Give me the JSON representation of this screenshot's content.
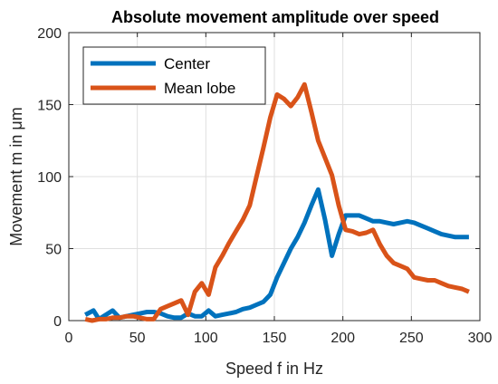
{
  "chart_data": {
    "type": "line",
    "title": "Absolute movement amplitude over speed",
    "xlabel": "Speed f in Hz",
    "ylabel": "Movement m in μm",
    "xlim": [
      0,
      300
    ],
    "ylim": [
      0,
      200
    ],
    "xticks": [
      0,
      50,
      100,
      150,
      200,
      250,
      300
    ],
    "yticks": [
      0,
      50,
      100,
      150,
      200
    ],
    "grid": true,
    "legend_position": "top-left",
    "series": [
      {
        "name": "Center",
        "color": "#0072BD",
        "x": [
          12,
          18,
          22,
          27,
          32,
          37,
          42,
          47,
          52,
          57,
          62,
          67,
          72,
          77,
          82,
          87,
          92,
          97,
          102,
          107,
          112,
          117,
          122,
          127,
          132,
          137,
          142,
          147,
          152,
          157,
          162,
          167,
          172,
          177,
          182,
          187,
          192,
          197,
          202,
          207,
          212,
          217,
          222,
          227,
          232,
          237,
          242,
          247,
          252,
          257,
          262,
          267,
          272,
          277,
          282,
          287,
          292
        ],
        "y": [
          4,
          7,
          1,
          4,
          7,
          2,
          3,
          4,
          5,
          6,
          6,
          5,
          3,
          2,
          2,
          5,
          3,
          3,
          7,
          3,
          4,
          5,
          6,
          8,
          9,
          11,
          13,
          18,
          30,
          40,
          50,
          58,
          68,
          80,
          91,
          70,
          45,
          60,
          73,
          73,
          73,
          71,
          69,
          69,
          68,
          67,
          68,
          69,
          68,
          66,
          64,
          62,
          60,
          59,
          58,
          58,
          58
        ]
      },
      {
        "name": "Mean lobe",
        "color": "#D95319",
        "x": [
          12,
          17,
          22,
          27,
          32,
          37,
          42,
          47,
          52,
          57,
          62,
          67,
          72,
          77,
          82,
          87,
          92,
          97,
          102,
          107,
          112,
          117,
          122,
          127,
          132,
          137,
          142,
          147,
          152,
          157,
          162,
          167,
          172,
          177,
          182,
          187,
          192,
          197,
          202,
          207,
          212,
          217,
          222,
          227,
          232,
          237,
          242,
          247,
          252,
          257,
          262,
          267,
          272,
          277,
          282,
          287,
          292
        ],
        "y": [
          1,
          0,
          1,
          1,
          2,
          2,
          3,
          3,
          2,
          1,
          1,
          8,
          10,
          12,
          14,
          4,
          20,
          26,
          18,
          37,
          45,
          54,
          62,
          70,
          80,
          100,
          120,
          141,
          157,
          154,
          149,
          155,
          164,
          145,
          125,
          113,
          101,
          80,
          63,
          62,
          60,
          61,
          63,
          53,
          45,
          40,
          38,
          36,
          30,
          29,
          28,
          28,
          26,
          24,
          23,
          22,
          20
        ]
      }
    ]
  }
}
